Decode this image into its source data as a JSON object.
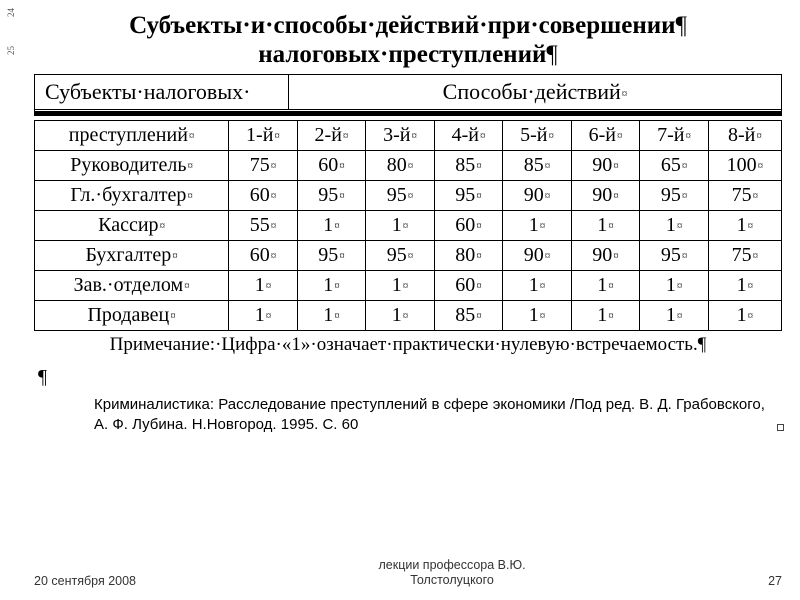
{
  "ruler": {
    "ticks": [
      "24",
      "25"
    ]
  },
  "title": {
    "line1": "Субъекты·и·способы·действий·при·совершении",
    "line2": "налоговых·преступлений",
    "pilcrow": "¶"
  },
  "header_row": {
    "left": "Субъекты·налоговых·",
    "right": "Способы·действий"
  },
  "table": {
    "columns_label_row": {
      "rowlabel": "преступлений",
      "cols": [
        "1-й",
        "2-й",
        "3-й",
        "4-й",
        "5-й",
        "6-й",
        "7-й",
        "8-й"
      ]
    },
    "rows": [
      {
        "label": "Руководитель",
        "vals": [
          "75",
          "60",
          "80",
          "85",
          "85",
          "90",
          "65",
          "100"
        ]
      },
      {
        "label": "Гл.·бухгалтер",
        "vals": [
          "60",
          "95",
          "95",
          "95",
          "90",
          "90",
          "95",
          "75"
        ]
      },
      {
        "label": "Кассир",
        "vals": [
          "55",
          "1",
          "1",
          "60",
          "1",
          "1",
          "1",
          "1"
        ]
      },
      {
        "label": "Бухгалтер",
        "vals": [
          "60",
          "95",
          "95",
          "80",
          "90",
          "90",
          "95",
          "75"
        ]
      },
      {
        "label": "Зав.·отделом",
        "vals": [
          "1",
          "1",
          "1",
          "60",
          "1",
          "1",
          "1",
          "1"
        ]
      },
      {
        "label": "Продавец",
        "vals": [
          "1",
          "1",
          "1",
          "85",
          "1",
          "1",
          "1",
          "1"
        ]
      }
    ],
    "col_widths_pct": [
      26,
      9.25,
      9.25,
      9.25,
      9.25,
      9.25,
      9.25,
      9.25,
      9.25
    ],
    "border_color": "#000000",
    "cell_fontsize_pt": 15,
    "header_fontsize_pt": 15
  },
  "note": "Примечание:·Цифра·«1»·означает·практически·нулевую·встречаемость.",
  "sun_glyph": "¤",
  "stray": "¶",
  "citation": "Криминалистика: Расследование преступлений в сфере экономики /Под ред. В. Д. Грабовского, А. Ф. Лубина. Н.Новгород. 1995. С. 60",
  "footer": {
    "date": "20 сентября 2008",
    "mid_line1": "лекции профессора  В.Ю.",
    "mid_line2": "Толстолуцкого",
    "page": "27"
  },
  "colors": {
    "text": "#000000",
    "background": "#ffffff",
    "footer_text": "#333333"
  }
}
